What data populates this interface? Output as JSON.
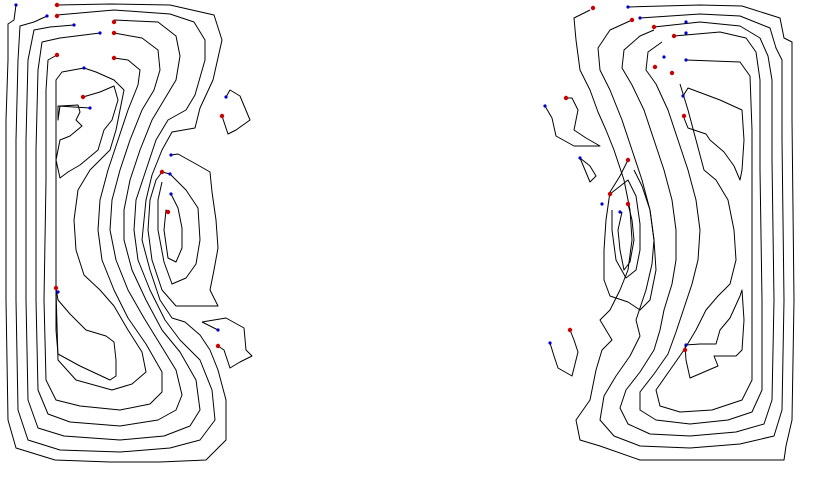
{
  "colors": {
    "background": "#ffffff",
    "contour": "#000000",
    "start_marker": "#cc0000",
    "end_marker": "#0000cc"
  },
  "diagram": {
    "type": "contour-line-plot",
    "panels": [
      "left",
      "right"
    ],
    "description_note": ""
  }
}
